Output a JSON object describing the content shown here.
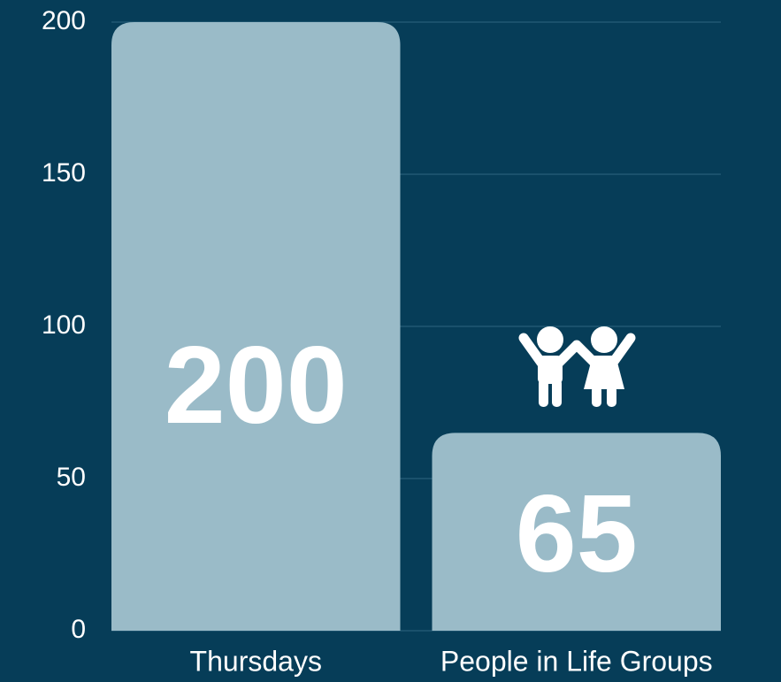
{
  "chart_data": {
    "type": "bar",
    "categories": [
      "Thursdays",
      "People in Life Groups"
    ],
    "values": [
      200,
      65
    ],
    "color": "#9abbc8",
    "ylim": [
      0,
      200
    ],
    "yticks": [
      0,
      50,
      100,
      150,
      200
    ],
    "grid": true
  }
}
